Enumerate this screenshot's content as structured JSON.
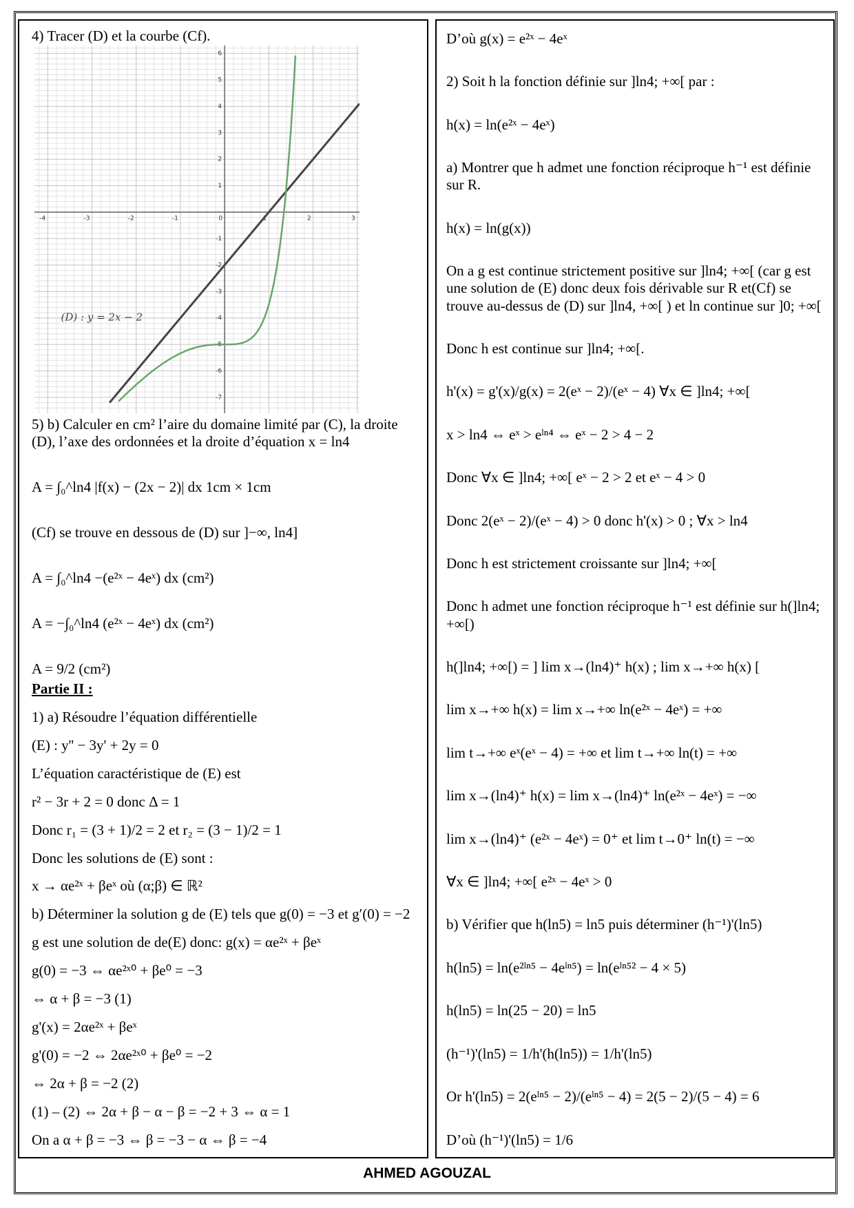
{
  "left": {
    "title": "4) Tracer (D) et la courbe (Cf).",
    "graph": {
      "xticks": [
        -4,
        -3,
        -2,
        -1,
        0,
        1,
        2,
        3
      ],
      "yticks": [
        -7,
        -6,
        -5,
        -4,
        -3,
        -2,
        -1,
        1,
        2,
        3,
        4,
        5,
        6
      ],
      "label": "(D) : y = 2x − 2"
    },
    "lines_a": [
      "5) b) Calculer en cm² l’aire du domaine limité par (C), la droite (D), l’axe des ordonnées et la droite d’équation   x = ln4",
      "A = ∫₀^ln4 |f(x) − (2x − 2)| dx 1cm × 1cm",
      "(Cf) se trouve en dessous de (D) sur ]−∞, ln4]",
      "A = ∫₀^ln4 −(e²ˣ − 4eˣ) dx (cm²)",
      "A = −∫₀^ln4 (e²ˣ − 4eˣ) dx (cm²)",
      "A = 9/2 (cm²)"
    ],
    "section": "Partie II :",
    "lines_b": [
      "1) a) Résoudre l’équation différentielle",
      "(E) : y'' − 3y' + 2y = 0",
      "L’équation caractéristique de (E) est",
      "r² − 3r + 2 = 0  donc  Δ = 1",
      "Donc r₁ = (3 + 1)/2 = 2 et r₂ = (3 − 1)/2 = 1",
      "Donc les solutions de (E) sont :",
      "x → αe²ˣ + βeˣ  où  (α;β) ∈ ℝ²",
      "b) Déterminer la solution g de (E) tels que g(0) = −3 et g′(0) = −2",
      "g est une solution de de(E) donc: g(x) = αe²ˣ + βeˣ",
      "g(0) = −3 ⇔ αe²ˣ⁰ + βe⁰ = −3",
      "⇔ α + β = −3   (1)",
      "g'(x) = 2αe²ˣ + βeˣ",
      "g'(0) = −2 ⇔ 2αe²ˣ⁰ + βe⁰ = −2",
      "⇔ 2α + β = −2   (2)",
      "(1) – (2)  ⇔ 2α + β − α − β = −2 + 3 ⇔ α = 1",
      "On a  α + β = −3 ⇔ β = −3 − α ⇔ β = −4"
    ]
  },
  "right": {
    "lines": [
      "D’où    g(x) = e²ˣ − 4eˣ",
      "2) Soit h la fonction définie sur ]ln4; +∞[ par :",
      "h(x) = ln(e²ˣ − 4eˣ)",
      "a) Montrer que h admet une fonction réciproque h⁻¹ est définie sur R.",
      "h(x) = ln(g(x))",
      "On a g est continue strictement positive sur ]ln4; +∞[ (car g est une solution de (E) donc deux fois dérivable sur R et(Cf) se trouve au-dessus de (D) sur ]ln4, +∞[ ) et ln continue sur ]0; +∞[",
      "Donc h est continue sur ]ln4; +∞[.",
      "h'(x) = g'(x)/g(x) = 2(eˣ − 2)/(eˣ − 4)  ∀x ∈ ]ln4; +∞[",
      "x > ln4 ⇔ eˣ > eˡⁿ⁴ ⇔ eˣ − 2 > 4 − 2",
      "Donc ∀x ∈ ]ln4; +∞[  eˣ − 2 > 2 et eˣ − 4 > 0",
      "Donc 2(eˣ − 2)/(eˣ − 4) > 0  donc h'(x) > 0 ;  ∀x > ln4",
      "Donc h est strictement croissante sur ]ln4; +∞[",
      "Donc h admet une fonction réciproque h⁻¹ est définie sur h(]ln4; +∞[)",
      "h(]ln4; +∞[) = ] lim x→(ln4)⁺ h(x) ; lim x→+∞ h(x) [",
      "lim x→+∞ h(x) = lim x→+∞ ln(e²ˣ − 4eˣ) = +∞",
      "lim t→+∞ eˣ(eˣ − 4) = +∞  et  lim t→+∞ ln(t) = +∞",
      "lim x→(ln4)⁺ h(x) = lim x→(ln4)⁺ ln(e²ˣ − 4eˣ) = −∞",
      "lim x→(ln4)⁺ (e²ˣ − 4eˣ) = 0⁺ et  lim t→0⁺ ln(t) = −∞",
      "∀x ∈ ]ln4; +∞[   e²ˣ − 4eˣ > 0",
      "b) Vérifier que h(ln5) = ln5 puis déterminer (h⁻¹)'(ln5)",
      "h(ln5) = ln(e²ˡⁿ⁵ − 4eˡⁿ⁵) = ln(eˡⁿ⁵² − 4 × 5)",
      "h(ln5) = ln(25 − 20) = ln5",
      "(h⁻¹)'(ln5) = 1/h'(h(ln5)) = 1/h'(ln5)",
      "Or  h'(ln5) = 2(eˡⁿ⁵ − 2)/(eˡⁿ⁵ − 4) = 2(5 − 2)/(5 − 4) = 6",
      "D’où  (h⁻¹)'(ln5) = 1/6"
    ]
  },
  "footer": "AHMED AGOUZAL"
}
